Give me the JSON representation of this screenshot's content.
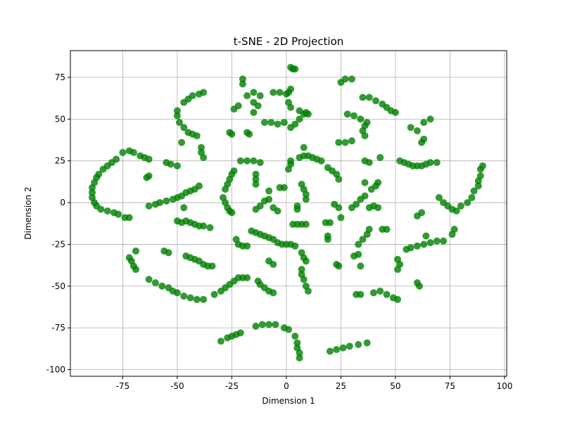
{
  "chart_data": {
    "type": "scatter",
    "title": "t-SNE - 2D Projection",
    "xlabel": "Dimension 1",
    "ylabel": "Dimension 2",
    "color": "#008000",
    "grid": true,
    "xlim": [
      -99,
      101
    ],
    "ylim": [
      -104,
      91
    ],
    "xticks": [
      -75,
      -50,
      -25,
      0,
      25,
      50,
      75,
      100
    ],
    "yticks": [
      -100,
      -75,
      -50,
      -25,
      0,
      25,
      50,
      75
    ],
    "x": [
      -78,
      -80,
      -82,
      -84,
      -86,
      -87,
      -88,
      -89,
      -89,
      -89,
      -88,
      -87,
      -85,
      -82,
      -79,
      -77,
      -74,
      -72,
      -75,
      -72,
      -70,
      -67,
      -65,
      -63,
      -63,
      -64,
      -63,
      -60,
      -58,
      -55,
      -52,
      -50,
      -48,
      -46,
      -44,
      -42,
      -40,
      -55,
      -53,
      -50,
      -50,
      -50,
      -49,
      -47,
      -45,
      -43,
      -41,
      -47,
      -45,
      -43,
      -40,
      -38,
      -48,
      -39,
      -39,
      -38,
      -47,
      -50,
      -48,
      -46,
      -44,
      -42,
      -40,
      -38,
      -35,
      -46,
      -44,
      -42,
      -40,
      -38,
      -36,
      -34,
      -56,
      -54,
      -72,
      -71,
      -70,
      -69,
      -69,
      -63,
      -60,
      -57,
      -54,
      -52,
      -50,
      -47,
      -44,
      -41,
      -38,
      -33,
      -30,
      -28,
      -26,
      -24,
      -22,
      -20,
      -18,
      -30,
      -27,
      -25,
      -23,
      -21,
      -14,
      -11,
      -8,
      -5,
      -1,
      1,
      4,
      5,
      5,
      6,
      6,
      20,
      23,
      26,
      29,
      33,
      37,
      -29,
      -28,
      -27,
      -26,
      -25,
      -28,
      -27,
      -26,
      -25,
      -24,
      -23,
      -22,
      -20,
      -18,
      -16,
      -14,
      -12,
      -10,
      -8,
      -6,
      -4,
      -2,
      0,
      2,
      4,
      7,
      8,
      9,
      7,
      7,
      8,
      9,
      10,
      -13,
      -12,
      -10,
      -8,
      -6,
      -8,
      -6,
      -14,
      -12,
      -10,
      -8,
      -6,
      -4,
      -21,
      -18,
      -15,
      -12,
      -14,
      -14,
      -14,
      -8,
      -3,
      -1,
      1,
      2,
      2,
      3,
      5,
      7,
      9,
      7,
      8,
      9,
      9,
      5,
      5,
      6,
      8,
      10,
      12,
      14,
      16,
      8,
      19,
      21,
      23,
      24,
      18,
      20,
      19,
      19,
      24,
      23,
      22,
      24,
      25,
      30,
      32,
      34,
      36,
      31,
      33,
      34,
      33,
      35,
      37,
      38,
      38,
      40,
      42,
      39,
      41,
      42,
      36,
      43,
      34,
      32,
      40,
      43,
      46,
      49,
      51,
      51,
      52,
      51,
      44,
      46,
      36,
      38,
      24,
      27,
      30,
      25,
      27,
      30,
      28,
      31,
      34,
      37,
      36,
      35,
      36,
      35,
      38,
      41,
      44,
      46,
      48,
      50,
      52,
      54,
      56,
      58,
      60,
      62,
      64,
      66,
      69,
      57,
      60,
      63,
      66,
      63,
      62,
      55,
      57,
      60,
      63,
      66,
      69,
      72,
      60,
      62,
      64,
      60,
      61,
      70,
      72,
      74,
      76,
      78,
      77,
      76,
      80,
      83,
      85,
      86,
      88,
      88,
      89,
      89,
      90,
      -18,
      -15,
      -12,
      -15,
      -20,
      -20,
      -24,
      -22,
      -15,
      -13,
      -18,
      -17,
      -26,
      -25,
      -6,
      -3,
      0,
      2,
      3,
      4,
      1,
      2,
      -10,
      -7,
      -4,
      -1,
      2,
      4,
      6,
      8,
      10,
      6,
      9,
      1,
      2
    ],
    "y": [
      26,
      24,
      22,
      20,
      17,
      15,
      12,
      9,
      6,
      3,
      0,
      -2,
      -4,
      -5,
      -6,
      -7,
      -9,
      -9,
      30,
      31,
      30,
      28,
      27,
      26,
      16,
      15,
      -2,
      -1,
      0,
      1,
      2,
      3,
      4,
      6,
      7,
      8,
      10,
      24,
      23,
      22,
      55,
      52,
      48,
      45,
      42,
      41,
      40,
      60,
      62,
      64,
      65,
      66,
      36,
      33,
      30,
      27,
      -3,
      -11,
      -12,
      -11,
      -12,
      -13,
      -14,
      -14,
      -15,
      -32,
      -33,
      -34,
      -35,
      -37,
      -38,
      -38,
      -29,
      -30,
      -33,
      -35,
      -38,
      -40,
      -29,
      -46,
      -48,
      -50,
      -51,
      -53,
      -54,
      -56,
      -57,
      -58,
      -58,
      -55,
      -53,
      -51,
      -49,
      -47,
      -45,
      -45,
      -45,
      -83,
      -81,
      -80,
      -79,
      -78,
      -74,
      -73,
      -73,
      -73,
      -75,
      -76,
      -80,
      -84,
      -87,
      -90,
      -93,
      -89,
      -88,
      -87,
      -86,
      -85,
      -84,
      3,
      0,
      -3,
      -5,
      -6,
      8,
      11,
      14,
      17,
      19,
      -22,
      -25,
      -26,
      -26,
      -17,
      -18,
      -19,
      -20,
      -21,
      -22,
      -24,
      -25,
      -25,
      -25,
      -26,
      -30,
      -33,
      -35,
      -40,
      -43,
      -46,
      -50,
      -53,
      -47,
      -49,
      -51,
      -53,
      -54,
      -35,
      -37,
      -4,
      -2,
      1,
      2,
      -3,
      -5,
      25,
      25,
      25,
      24,
      17,
      14,
      11,
      7,
      9,
      9,
      20,
      23,
      25,
      -13,
      -13,
      -13,
      -13,
      11,
      8,
      5,
      2,
      -4,
      -2,
      27,
      28,
      28,
      27,
      26,
      25,
      33,
      21,
      19,
      17,
      14,
      -12,
      -12,
      -20,
      -22,
      -38,
      -37,
      -1,
      -3,
      -9,
      -3,
      -1,
      2,
      4,
      -32,
      -31,
      -38,
      -25,
      -22,
      -19,
      -16,
      -3,
      -2,
      -3,
      8,
      10,
      12,
      12,
      27,
      -55,
      -55,
      -54,
      -53,
      -55,
      -57,
      -58,
      -40,
      -37,
      -34,
      -16,
      -16,
      25,
      24,
      36,
      36,
      37,
      72,
      74,
      74,
      53,
      52,
      50,
      48,
      46,
      43,
      40,
      63,
      63,
      61,
      59,
      57,
      55,
      54,
      25,
      24,
      23,
      22,
      22,
      22,
      23,
      24,
      24,
      45,
      43,
      48,
      50,
      38,
      36,
      -28,
      -27,
      -26,
      -25,
      -24,
      -23,
      -23,
      -8,
      -6,
      -20,
      -48,
      -50,
      3,
      0,
      -2,
      -4,
      -5,
      -16,
      -19,
      -2,
      0,
      3,
      7,
      10,
      13,
      16,
      20,
      22,
      64,
      66,
      64,
      60,
      74,
      71,
      56,
      58,
      54,
      58,
      42,
      41,
      42,
      41,
      66,
      66,
      65,
      81,
      80,
      80,
      66,
      68,
      48,
      48,
      47,
      48,
      45,
      47,
      50,
      53,
      53,
      55,
      54,
      60,
      57
    ]
  }
}
